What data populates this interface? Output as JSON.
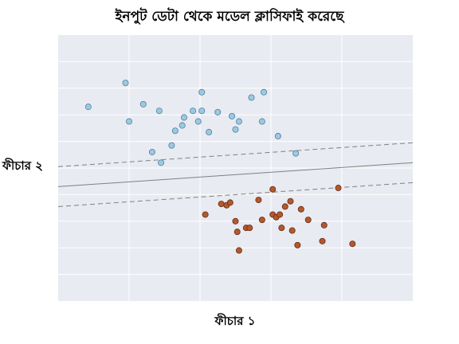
{
  "chart_data": {
    "type": "scatter",
    "title": "ইনপুট ডেটা থেকে মডেল ক্লাসিফাই করেছে",
    "xlabel": "ফীচার ১",
    "ylabel": "ফীচার ২",
    "xlim": [
      0,
      10
    ],
    "ylim": [
      0,
      10
    ],
    "grid": true,
    "background": "#e9ebf2",
    "series": [
      {
        "color": "#9ec9dc",
        "edge": "#4a7fa8",
        "points": [
          [
            0.85,
            7.3
          ],
          [
            1.9,
            8.2
          ],
          [
            2.0,
            6.75
          ],
          [
            2.4,
            7.4
          ],
          [
            2.65,
            5.6
          ],
          [
            2.85,
            7.15
          ],
          [
            2.9,
            5.2
          ],
          [
            3.2,
            5.85
          ],
          [
            3.3,
            6.4
          ],
          [
            3.5,
            6.6
          ],
          [
            3.55,
            6.9
          ],
          [
            3.8,
            7.15
          ],
          [
            3.95,
            6.75
          ],
          [
            4.05,
            7.15
          ],
          [
            4.05,
            7.85
          ],
          [
            4.25,
            6.35
          ],
          [
            4.5,
            7.1
          ],
          [
            4.9,
            6.95
          ],
          [
            5.0,
            6.45
          ],
          [
            5.1,
            6.75
          ],
          [
            5.45,
            7.65
          ],
          [
            5.75,
            6.75
          ],
          [
            5.8,
            7.85
          ],
          [
            6.2,
            6.2
          ],
          [
            6.7,
            5.55
          ]
        ]
      },
      {
        "color": "#b05a2f",
        "edge": "#6b2a10",
        "points": [
          [
            4.15,
            3.25
          ],
          [
            4.6,
            3.65
          ],
          [
            4.75,
            3.6
          ],
          [
            4.85,
            3.7
          ],
          [
            5.0,
            3.0
          ],
          [
            5.05,
            2.6
          ],
          [
            5.1,
            1.9
          ],
          [
            5.3,
            2.75
          ],
          [
            5.4,
            2.75
          ],
          [
            5.65,
            3.8
          ],
          [
            5.75,
            3.05
          ],
          [
            6.05,
            3.25
          ],
          [
            6.05,
            4.2
          ],
          [
            6.15,
            3.15
          ],
          [
            6.25,
            3.25
          ],
          [
            6.3,
            2.75
          ],
          [
            6.4,
            3.55
          ],
          [
            6.55,
            3.75
          ],
          [
            6.6,
            2.65
          ],
          [
            6.75,
            2.1
          ],
          [
            6.85,
            3.45
          ],
          [
            7.05,
            3.05
          ],
          [
            7.45,
            2.25
          ],
          [
            7.5,
            2.85
          ],
          [
            7.9,
            4.25
          ],
          [
            8.3,
            2.15
          ]
        ]
      }
    ],
    "lines": [
      {
        "style": "solid",
        "color": "#808080",
        "from": [
          0,
          4.3
        ],
        "to": [
          10,
          5.2
        ]
      },
      {
        "style": "dashed",
        "color": "#808080",
        "from": [
          0,
          5.05
        ],
        "to": [
          10,
          5.95
        ]
      },
      {
        "style": "dashed",
        "color": "#808080",
        "from": [
          0,
          3.55
        ],
        "to": [
          10,
          4.45
        ]
      }
    ]
  }
}
